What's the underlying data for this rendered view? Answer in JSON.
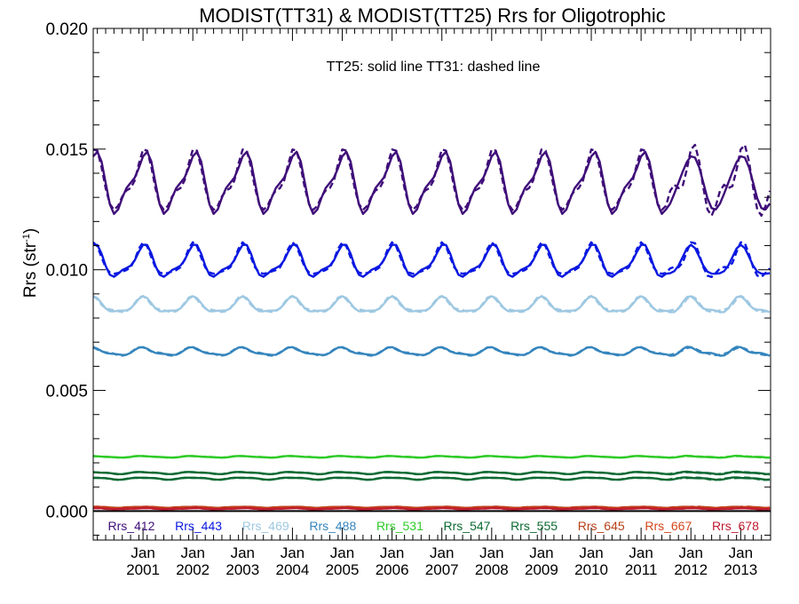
{
  "chart_data": {
    "type": "line",
    "title": "MODIST(TT31) & MODIST(TT25)  Rrs for Oligotrophic",
    "ylabel": "Rrs (str",
    "ylabel_sup": "-1",
    "ylabel_close": ")",
    "annotation": "TT25: solid line   TT31: dashed line",
    "ylim": [
      -0.0012,
      0.02
    ],
    "xlim": [
      2000.0,
      2013.6
    ],
    "yticks": [
      0.0,
      0.005,
      0.01,
      0.015,
      0.02
    ],
    "ytick_labels": [
      "0.000",
      "0.005",
      "0.010",
      "0.015",
      "0.020"
    ],
    "xticks": [
      2001,
      2002,
      2003,
      2004,
      2005,
      2006,
      2007,
      2008,
      2009,
      2010,
      2011,
      2012,
      2013
    ],
    "xtick_month": "Jan",
    "xtick_labels": [
      "2001",
      "2002",
      "2003",
      "2004",
      "2005",
      "2006",
      "2007",
      "2008",
      "2009",
      "2010",
      "2011",
      "2012",
      "2013"
    ],
    "legend_position": "bottom, inside plot",
    "series": [
      {
        "name": "Rrs_412",
        "color": "#3f0e79",
        "base": 0.0136,
        "amp": 0.0011
      },
      {
        "name": "Rrs_443",
        "color": "#0a18e0",
        "base": 0.0103,
        "amp": 0.0006
      },
      {
        "name": "Rrs_469",
        "color": "#9ec8e2",
        "base": 0.0085,
        "amp": 0.0003
      },
      {
        "name": "Rrs_488",
        "color": "#3585bd",
        "base": 0.0066,
        "amp": 0.00015
      },
      {
        "name": "Rrs_531",
        "color": "#2ecb27",
        "base": 0.00225,
        "amp": 3e-05
      },
      {
        "name": "Rrs_547",
        "color": "#0c6a33",
        "base": 0.00158,
        "amp": 4e-05
      },
      {
        "name": "Rrs_555",
        "color": "#0c6a33",
        "base": 0.00135,
        "amp": 4e-05
      },
      {
        "name": "Rrs_645",
        "color": "#b7401a",
        "base": 0.00016,
        "amp": 2e-05
      },
      {
        "name": "Rrs_667",
        "color": "#d4461b",
        "base": 0.00012,
        "amp": 2e-05
      },
      {
        "name": "Rrs_678",
        "color": "#bf1a2e",
        "base": 0.0001,
        "amp": 2e-05
      }
    ]
  }
}
